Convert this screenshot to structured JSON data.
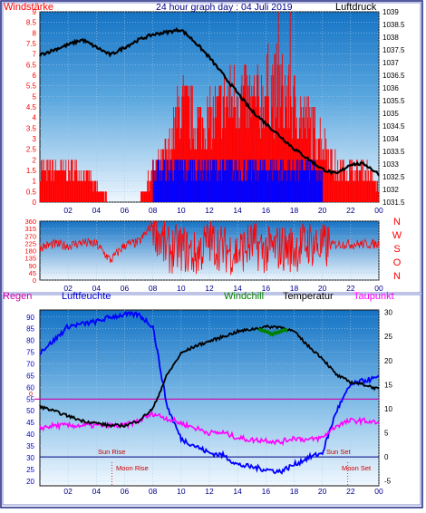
{
  "panel1": {
    "title": "24 hour graph day : 04 Juli 2019",
    "left_label": "Windstärke",
    "right_label": "Luftdruck",
    "colors": {
      "wind_max": "#ff0000",
      "wind_avg": "#0000ff",
      "pressure": "#000000",
      "left_axis": "#ff0000"
    }
  },
  "panel2": {
    "direction_labels": [
      "N",
      "W",
      "S",
      "O",
      "N"
    ],
    "colors": {
      "direction": "#ff0000"
    }
  },
  "panel3": {
    "labels": {
      "regen": "Regen",
      "luftfeuchte": "Luftfeuchte",
      "windchill": "Windchill",
      "temperatur": "Temperatur",
      "taupunkt": "Taupunkt"
    },
    "marker_texts": {
      "sun_rise": "Sun Rise",
      "sun_set": "Sun Set",
      "moon_rise": "Moon Rise",
      "moon_set": "Moon Set"
    },
    "regen_zero": "0",
    "colors": {
      "humidity": "#0000ff",
      "temperature": "#000000",
      "windchill": "#008000",
      "dewpoint": "#ff00ff",
      "rain_line": "#cc00aa",
      "markers": "#cc0000"
    }
  },
  "chart_data": [
    {
      "type": "line",
      "title": "24 hour graph day : 04 Juli 2019",
      "x_ticks": [
        "02",
        "04",
        "06",
        "08",
        "10",
        "12",
        "14",
        "16",
        "18",
        "20",
        "22",
        "00"
      ],
      "y_left": {
        "label": "Windstärke",
        "ticks": [
          "0",
          "0.5",
          "1",
          "1.5",
          "2",
          "2.5",
          "3",
          "3.5",
          "4",
          "4.5",
          "5",
          "5.5",
          "6",
          "6.5",
          "7",
          "7.5",
          "8",
          "8.5",
          "9"
        ],
        "range": [
          0,
          9
        ]
      },
      "y_right": {
        "label": "Luftdruck",
        "ticks": [
          "1031.5",
          "1032",
          "1032.5",
          "1033",
          "1033.5",
          "1034",
          "1034.5",
          "1035",
          "1035.5",
          "1036",
          "1036.5",
          "1037",
          "1037.5",
          "1038",
          "1038.5",
          "1039"
        ],
        "range": [
          1031.5,
          1039
        ]
      },
      "series": [
        {
          "name": "Luftdruck",
          "x_hours": [
            0,
            1,
            2,
            3,
            4,
            5,
            6,
            7,
            8,
            9,
            10,
            11,
            12,
            13,
            14,
            15,
            16,
            17,
            18,
            19,
            20,
            21,
            22,
            23,
            24
          ],
          "values": [
            1037.3,
            1037.5,
            1037.7,
            1037.9,
            1037.6,
            1037.3,
            1037.6,
            1037.9,
            1038.1,
            1038.2,
            1038.3,
            1037.8,
            1037.2,
            1036.5,
            1035.8,
            1035.1,
            1034.6,
            1034.1,
            1033.6,
            1033.2,
            1032.8,
            1032.6,
            1033.0,
            1033.0,
            1032.6
          ]
        },
        {
          "name": "Wind max",
          "x_hours": [
            0,
            1,
            2,
            3,
            4,
            5,
            6,
            7,
            8,
            9,
            10,
            11,
            12,
            13,
            14,
            15,
            16,
            17,
            18,
            19,
            20,
            21,
            22,
            23,
            24
          ],
          "values": [
            2,
            2,
            2,
            2,
            1,
            0,
            0,
            0,
            2,
            3,
            6,
            5,
            5,
            6,
            7,
            6,
            7,
            7,
            6,
            5,
            4,
            2,
            2,
            2,
            1
          ]
        },
        {
          "name": "Wind avg",
          "x_hours": [
            8,
            9,
            10,
            11,
            12,
            13,
            14,
            15,
            16,
            17,
            18,
            19,
            20
          ],
          "values": [
            2,
            2,
            2,
            2,
            2,
            2,
            2,
            2,
            2,
            2,
            2,
            2,
            1.5
          ]
        }
      ]
    },
    {
      "type": "line",
      "x_ticks": [
        "02",
        "04",
        "06",
        "08",
        "10",
        "12",
        "14",
        "16",
        "18",
        "20",
        "22",
        "00"
      ],
      "y_left": {
        "ticks": [
          "0",
          "45",
          "90",
          "135",
          "180",
          "225",
          "270",
          "315",
          "360"
        ],
        "range": [
          0,
          360
        ]
      },
      "series": [
        {
          "name": "Windrichtung",
          "x_hours": [
            0,
            1,
            2,
            3,
            4,
            5,
            6,
            7,
            8,
            9,
            10,
            11,
            12,
            13,
            14,
            15,
            16,
            17,
            18,
            19,
            20,
            21,
            22,
            23,
            24
          ],
          "values": [
            200,
            220,
            210,
            230,
            220,
            120,
            215,
            230,
            345,
            180,
            200,
            150,
            240,
            190,
            170,
            220,
            180,
            200,
            190,
            230,
            200,
            220,
            220,
            220,
            220
          ]
        }
      ]
    },
    {
      "type": "line",
      "x_ticks": [
        "02",
        "04",
        "06",
        "08",
        "10",
        "12",
        "14",
        "16",
        "18",
        "20",
        "22",
        "00"
      ],
      "y_left": {
        "label": "Luftfeuchte",
        "ticks": [
          "20",
          "25",
          "30",
          "35",
          "40",
          "45",
          "50",
          "55",
          "60",
          "65",
          "70",
          "75",
          "80",
          "85",
          "90"
        ],
        "range": [
          18,
          93
        ]
      },
      "y_right": {
        "label": "Temperatur",
        "ticks": [
          "-5",
          "0",
          "5",
          "10",
          "15",
          "20",
          "25",
          "30"
        ],
        "range": [
          -6,
          30.5
        ]
      },
      "series": [
        {
          "name": "Luftfeuchte",
          "x_hours": [
            0,
            1,
            2,
            3,
            4,
            5,
            6,
            7,
            8,
            9,
            10,
            11,
            12,
            13,
            14,
            15,
            16,
            17,
            18,
            19,
            20,
            21,
            22,
            23,
            24
          ],
          "values": [
            75,
            80,
            86,
            87,
            88,
            90,
            91,
            91,
            86,
            52,
            38,
            35,
            32,
            31,
            27,
            26,
            25,
            24,
            27,
            30,
            32,
            50,
            61,
            63,
            64
          ]
        },
        {
          "name": "Temperatur",
          "x_hours": [
            0,
            1,
            2,
            3,
            4,
            5,
            6,
            7,
            8,
            9,
            10,
            11,
            12,
            13,
            14,
            15,
            16,
            17,
            18,
            19,
            20,
            21,
            22,
            23,
            24
          ],
          "values": [
            10.5,
            9.5,
            8.5,
            7.5,
            7,
            6.5,
            6.5,
            7.5,
            10,
            17,
            21.5,
            23,
            24,
            25,
            26,
            26.5,
            27,
            27,
            26,
            23,
            20.5,
            17,
            15.5,
            15,
            14
          ]
        },
        {
          "name": "Windchill",
          "x_hours": [
            15.5,
            16,
            16.5,
            17,
            17.5
          ],
          "values": [
            26.5,
            26,
            25.5,
            26,
            26.5
          ]
        },
        {
          "name": "Taupunkt",
          "x_hours": [
            0,
            1,
            2,
            3,
            4,
            5,
            6,
            7,
            8,
            9,
            10,
            11,
            12,
            13,
            14,
            15,
            16,
            17,
            18,
            19,
            20,
            21,
            22,
            23,
            24
          ],
          "values": [
            6,
            6.5,
            6.5,
            6.5,
            6.5,
            6.5,
            6.5,
            7.5,
            9,
            8,
            7,
            6,
            5,
            5,
            4,
            3.5,
            3.5,
            3,
            4,
            3.5,
            4,
            6.5,
            7.5,
            7.5,
            7
          ]
        },
        {
          "name": "Regen",
          "x_hours": [
            0,
            24
          ],
          "values": [
            0,
            0
          ]
        }
      ]
    }
  ]
}
